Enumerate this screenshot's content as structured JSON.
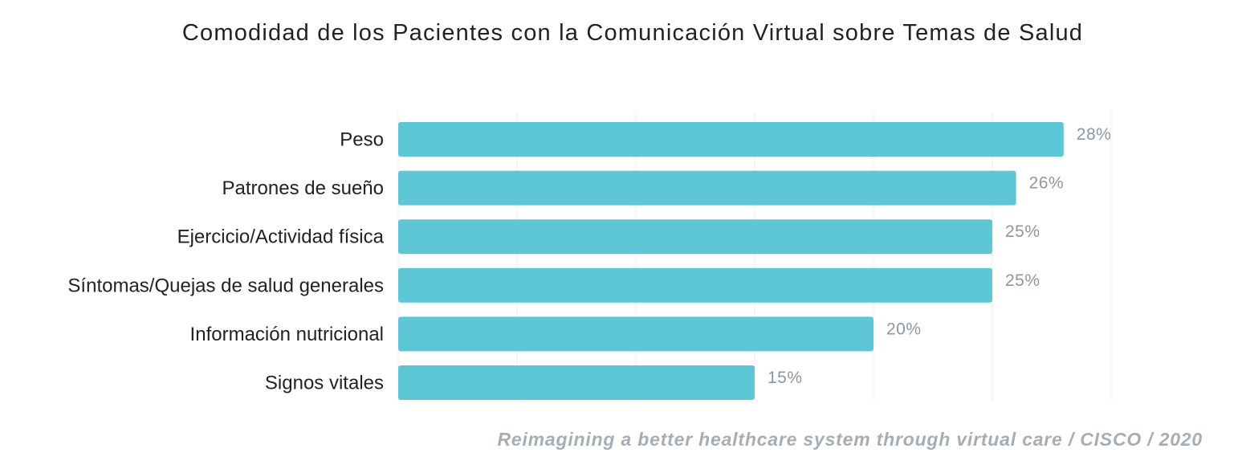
{
  "chart_data": {
    "type": "bar",
    "orientation": "horizontal",
    "title": "Comodidad de los Pacientes con la Comunicación Virtual sobre Temas de Salud",
    "categories": [
      "Peso",
      "Patrones de sueño",
      "Ejercicio/Actividad física",
      "Síntomas/Quejas de salud generales",
      "Información nutricional",
      "Signos vitales"
    ],
    "values": [
      28,
      26,
      25,
      25,
      20,
      15
    ],
    "value_labels": [
      "28%",
      "26%",
      "25%",
      "25%",
      "20%",
      "15%"
    ],
    "unit": "%",
    "xlim": [
      0,
      30
    ],
    "grid": true,
    "legend": "none",
    "bar_color": "#5dc7d8",
    "source": "Reimagining a better healthcare system through virtual care / CISCO / 2020"
  }
}
